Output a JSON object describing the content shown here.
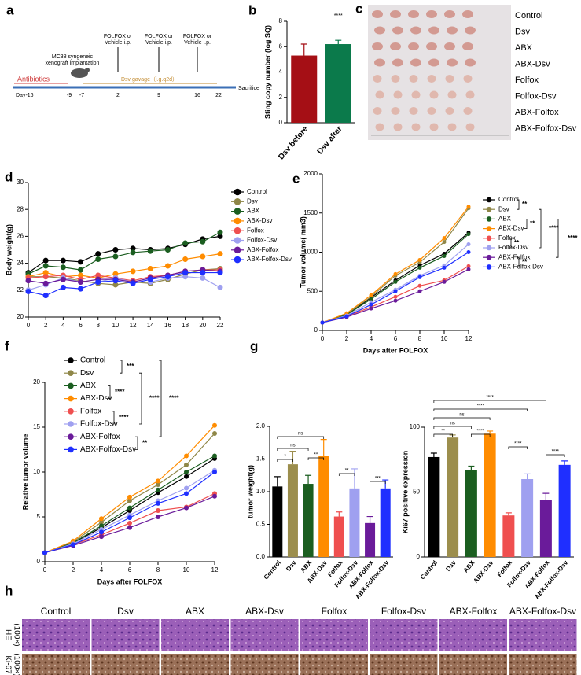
{
  "panels": [
    "a",
    "b",
    "c",
    "d",
    "e",
    "f",
    "g",
    "h"
  ],
  "timeline": {
    "phase": "Antibiotics",
    "implant": [
      "MC38 syngeneic",
      "xenograft implantation"
    ],
    "treatments": [
      [
        "FOLFOX or",
        "Vehicle i.p."
      ],
      [
        "FOLFOX or",
        "Vehicle i.p."
      ],
      [
        "FOLFOX or",
        "Vehicle i.p."
      ]
    ],
    "gavage": "Dsv gavage（i.g.q2d）",
    "days": [
      "Day-16",
      "-9",
      "-7",
      "2",
      "9",
      "16",
      "22"
    ],
    "end": "Sacrifice"
  },
  "photo_c": {
    "rows": [
      "Control",
      "Dsv",
      "ABX",
      "ABX-Dsv",
      "Folfox",
      "Folfox-Dsv",
      "ABX-Folfox",
      "ABX-Folfox-Dsv"
    ]
  },
  "histology": {
    "columns": [
      "Control",
      "Dsv",
      "ABX",
      "ABX-Dsv",
      "Folfox",
      "Folfox-Dsv",
      "ABX-Folfox",
      "ABX-Folfox-Dsv"
    ],
    "rows": [
      [
        "HE",
        "(100×)"
      ],
      [
        "Ki-67",
        "(100×)"
      ]
    ]
  },
  "chart_data": [
    {
      "type": "bar",
      "ylabel": "Sting  copy number (log SQ)",
      "categories": [
        "Dsv before",
        "Dsv after"
      ],
      "values": [
        5.3,
        6.2
      ],
      "errors": [
        0.9,
        0.3
      ],
      "colors": [
        "#a50f15",
        "#0b7a4b"
      ],
      "ylim": [
        0,
        8
      ],
      "yticks": [
        0,
        2,
        4,
        6,
        8
      ],
      "annotations": [
        "****"
      ]
    },
    {
      "type": "line",
      "ylabel": "Body weight(g)",
      "x": [
        0,
        2,
        4,
        6,
        8,
        10,
        12,
        14,
        16,
        18,
        20,
        22
      ],
      "xlim": [
        0,
        22
      ],
      "xticks": [
        0,
        2,
        4,
        6,
        8,
        10,
        12,
        14,
        16,
        18,
        20,
        22
      ],
      "ylim": [
        20,
        30
      ],
      "yticks": [
        20,
        22,
        24,
        26,
        28,
        30
      ],
      "series": [
        {
          "name": "Control",
          "color": "#000000",
          "values": [
            23.3,
            24.2,
            24.2,
            24.1,
            24.7,
            25.0,
            25.1,
            25.0,
            25.1,
            25.4,
            25.8,
            26.0
          ]
        },
        {
          "name": "Dsv",
          "color": "#8f8748",
          "values": [
            23.0,
            23.0,
            22.9,
            22.7,
            22.5,
            22.4,
            22.6,
            22.5,
            22.8,
            23.2,
            23.5,
            23.6
          ]
        },
        {
          "name": "ABX",
          "color": "#1b5e20",
          "values": [
            23.2,
            23.8,
            23.7,
            23.5,
            24.3,
            24.5,
            24.8,
            24.9,
            25.0,
            25.5,
            25.6,
            26.3
          ]
        },
        {
          "name": "ABX-Dsv",
          "color": "#ff8c00",
          "values": [
            23.0,
            23.3,
            23.0,
            23.1,
            22.9,
            23.2,
            23.4,
            23.6,
            23.8,
            24.3,
            24.5,
            24.7
          ]
        },
        {
          "name": "Folfox",
          "color": "#ef4f4f",
          "values": [
            22.9,
            23.0,
            23.1,
            22.8,
            23.1,
            22.9,
            22.7,
            23.0,
            23.1,
            23.4,
            23.5,
            23.5
          ]
        },
        {
          "name": "Folfox-Dsv",
          "color": "#9fa0f0",
          "values": [
            22.0,
            22.4,
            22.9,
            22.6,
            22.6,
            22.9,
            22.6,
            22.6,
            22.9,
            23.0,
            22.9,
            22.2
          ]
        },
        {
          "name": "ABX-Folfox",
          "color": "#6a1b9a",
          "values": [
            22.7,
            22.5,
            22.8,
            22.6,
            22.8,
            22.8,
            22.6,
            22.9,
            23.1,
            23.4,
            23.5,
            23.4
          ]
        },
        {
          "name": "ABX-Folfox-Dsv",
          "color": "#1f2fff",
          "values": [
            21.9,
            21.6,
            22.2,
            22.1,
            22.6,
            22.7,
            22.5,
            22.8,
            23.0,
            23.3,
            23.3,
            23.3
          ]
        }
      ]
    },
    {
      "type": "line",
      "ylabel": "Tumor volume( mm3)",
      "xlabel": "Days after FOLFOX",
      "x": [
        0,
        2,
        4,
        6,
        8,
        10,
        12
      ],
      "xlim": [
        0,
        12
      ],
      "xticks": [
        0,
        2,
        4,
        6,
        8,
        10,
        12
      ],
      "ylim": [
        0,
        2000
      ],
      "yticks": [
        0,
        500,
        1000,
        1500,
        2000
      ],
      "series": [
        {
          "name": "Control",
          "color": "#000000",
          "values": [
            100,
            200,
            420,
            640,
            830,
            980,
            1250
          ]
        },
        {
          "name": "Dsv",
          "color": "#8f8748",
          "values": [
            100,
            210,
            430,
            700,
            870,
            1130,
            1560
          ]
        },
        {
          "name": "ABX",
          "color": "#1b5e20",
          "values": [
            100,
            200,
            400,
            620,
            800,
            950,
            1230
          ]
        },
        {
          "name": "ABX-Dsv",
          "color": "#ff8c00",
          "values": [
            100,
            220,
            450,
            720,
            900,
            1180,
            1580
          ]
        },
        {
          "name": "Folfox",
          "color": "#ef4f4f",
          "values": [
            100,
            180,
            300,
            430,
            570,
            640,
            820
          ]
        },
        {
          "name": "Folfox-Dsv",
          "color": "#9fa0f0",
          "values": [
            100,
            190,
            360,
            520,
            700,
            830,
            1100
          ]
        },
        {
          "name": "ABX-Folfox",
          "color": "#6a1b9a",
          "values": [
            100,
            170,
            280,
            380,
            500,
            620,
            780
          ]
        },
        {
          "name": "ABX-Folfox-Dsv",
          "color": "#1f2fff",
          "values": [
            100,
            180,
            330,
            500,
            680,
            800,
            1000
          ]
        }
      ],
      "annotations": [
        "**",
        "**",
        "**",
        "**",
        "****",
        "****"
      ]
    },
    {
      "type": "line",
      "ylabel": "Relative tumor volume",
      "xlabel": "Days after FOLFOX",
      "x": [
        0,
        2,
        4,
        6,
        8,
        10,
        12
      ],
      "xlim": [
        0,
        12
      ],
      "xticks": [
        0,
        2,
        4,
        6,
        8,
        10,
        12
      ],
      "ylim": [
        0,
        20
      ],
      "yticks": [
        0,
        5,
        10,
        15,
        20
      ],
      "series": [
        {
          "name": "Control",
          "color": "#000000",
          "values": [
            1,
            2.1,
            3.8,
            5.7,
            7.7,
            9.5,
            11.5
          ]
        },
        {
          "name": "Dsv",
          "color": "#8f8748",
          "values": [
            1,
            2.2,
            4.4,
            6.8,
            8.6,
            10.8,
            14.3
          ]
        },
        {
          "name": "ABX",
          "color": "#1b5e20",
          "values": [
            1,
            2.1,
            4.0,
            6.0,
            8.0,
            10.0,
            11.8
          ]
        },
        {
          "name": "ABX-Dsv",
          "color": "#ff8c00",
          "values": [
            1,
            2.3,
            4.8,
            7.2,
            9.0,
            11.8,
            15.2
          ]
        },
        {
          "name": "Folfox",
          "color": "#ef4f4f",
          "values": [
            1,
            1.9,
            3.0,
            4.3,
            5.7,
            6.1,
            7.6
          ]
        },
        {
          "name": "Folfox-Dsv",
          "color": "#9fa0f0",
          "values": [
            1,
            2.0,
            3.6,
            5.2,
            6.8,
            8.2,
            10.2
          ]
        },
        {
          "name": "ABX-Folfox",
          "color": "#6a1b9a",
          "values": [
            1,
            1.8,
            2.8,
            3.8,
            5.0,
            6.0,
            7.3
          ]
        },
        {
          "name": "ABX-Folfox-Dsv",
          "color": "#1f2fff",
          "values": [
            1,
            1.9,
            3.3,
            4.9,
            6.5,
            7.6,
            10.0
          ]
        }
      ],
      "annotations": [
        "***",
        "****",
        "****",
        "**",
        "****",
        "****"
      ]
    },
    {
      "type": "bar",
      "ylabel": "tumor weight(g)",
      "categories": [
        "Control",
        "Dsv",
        "ABX",
        "ABX-Dsv",
        "Folfox",
        "Folfox-Dsv",
        "ABX-Folfox",
        "ABX-Folfox-Dsv"
      ],
      "values": [
        1.08,
        1.42,
        1.12,
        1.55,
        0.62,
        1.05,
        0.52,
        1.05
      ],
      "errors": [
        0.15,
        0.2,
        0.13,
        0.25,
        0.07,
        0.3,
        0.1,
        0.13
      ],
      "colors": [
        "#000000",
        "#9c8e4d",
        "#1b5e20",
        "#ff8c00",
        "#ef4f4f",
        "#9fa0f0",
        "#6a1b9a",
        "#1f2fff"
      ],
      "ylim": [
        0,
        2
      ],
      "yticks": [
        {
          "value": 0,
          "label": "0.0"
        },
        0.5,
        {
          "value": 1,
          "label": "1.0"
        },
        1.5,
        {
          "value": 2,
          "label": "2.0"
        }
      ],
      "annotations": [
        "*",
        "ns",
        "ns",
        "**",
        "**",
        "***"
      ]
    },
    {
      "type": "bar",
      "ylabel": "Ki67 positive expression",
      "categories": [
        "Control",
        "Dsv",
        "ABX",
        "ABX-Dsv",
        "Folfox",
        "Folfox-Dsv",
        "ABX-Folfox",
        "ABX-Folfox-Dsv"
      ],
      "values": [
        77,
        92,
        67,
        95,
        32,
        60,
        44,
        71
      ],
      "errors": [
        3,
        2,
        3,
        2,
        2,
        4,
        5,
        3
      ],
      "colors": [
        "#000000",
        "#9c8e4d",
        "#1b5e20",
        "#ff8c00",
        "#ef4f4f",
        "#9fa0f0",
        "#6a1b9a",
        "#1f2fff"
      ],
      "ylim": [
        0,
        100
      ],
      "yticks": [
        0,
        50,
        100
      ],
      "annotations": [
        "****",
        "****",
        "ns",
        "ns",
        "**",
        "****",
        "****",
        "****"
      ]
    }
  ]
}
